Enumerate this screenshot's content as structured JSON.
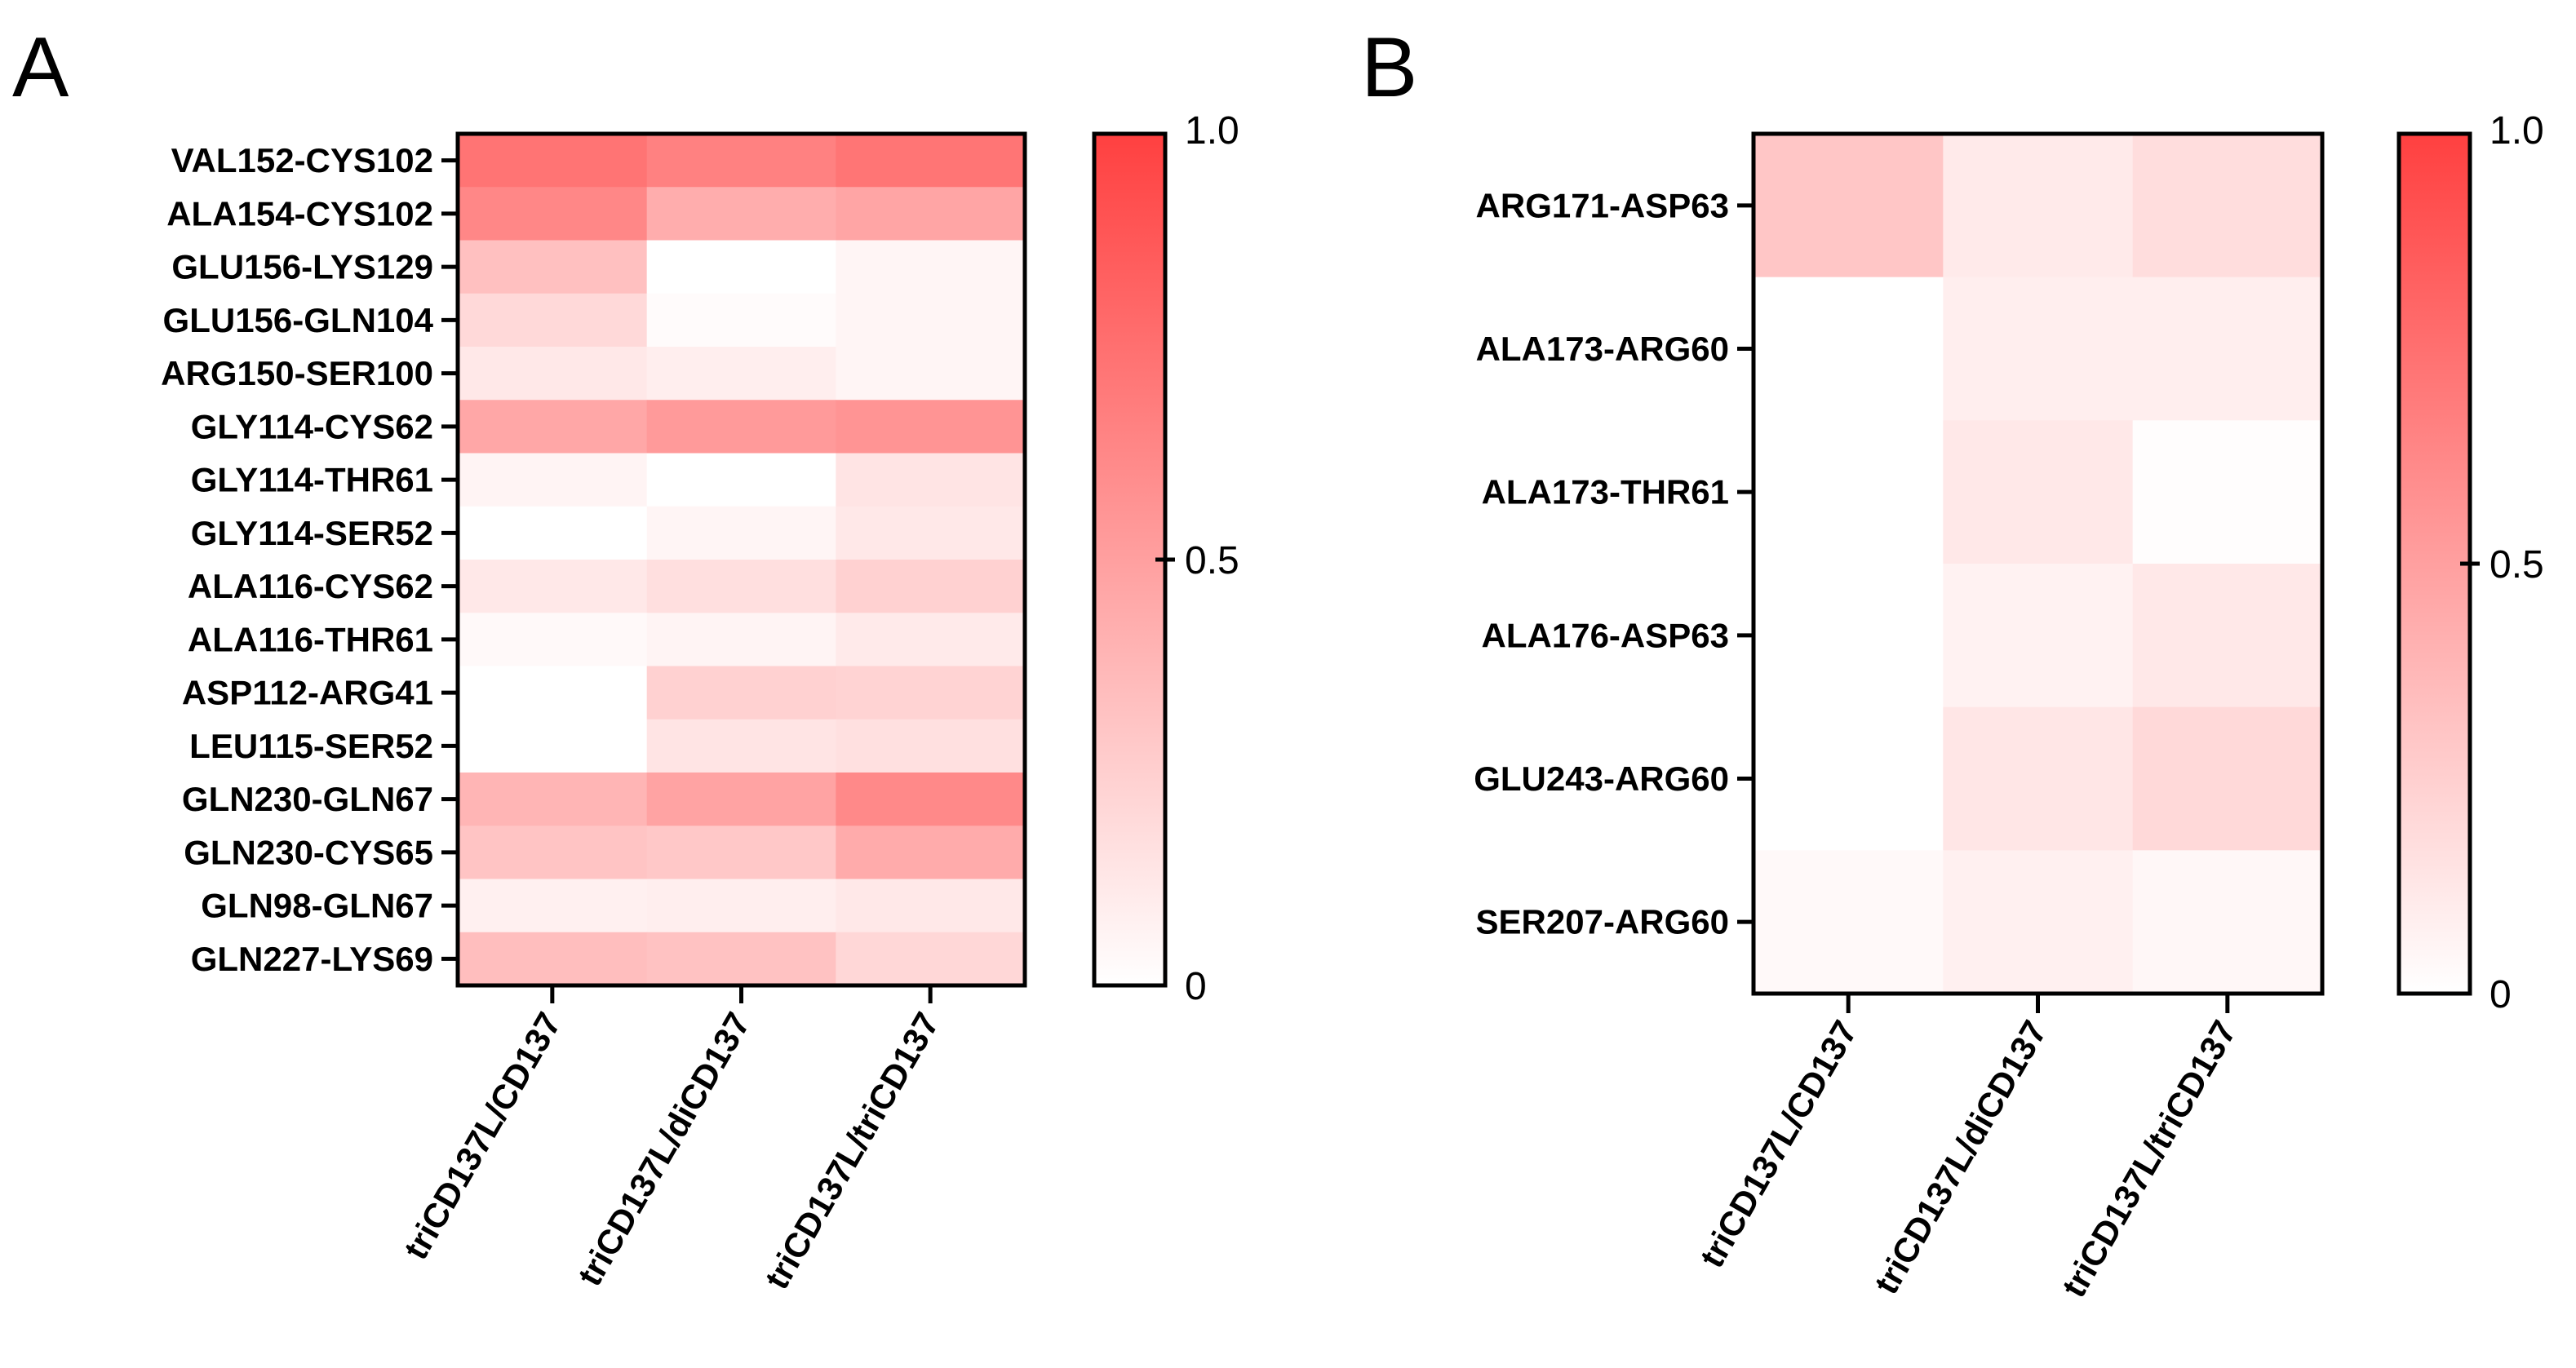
{
  "colors": {
    "low": "#ffffff",
    "high": "#ff4040",
    "frame": "#000000"
  },
  "chart_data": [
    {
      "type": "heatmap",
      "panel_label": "A",
      "columns": [
        "triCD137L/CD137",
        "triCD137L/diCD137",
        "triCD137L/triCD137"
      ],
      "rows": [
        "VAL152-CYS102",
        "ALA154-CYS102",
        "GLU156-LYS129",
        "GLU156-GLN104",
        "ARG150-SER100",
        "GLY114-CYS62",
        "GLY114-THR61",
        "GLY114-SER52",
        "ALA116-CYS62",
        "ALA116-THR61",
        "ASP112-ARG41",
        "LEU115-SER52",
        "GLN230-GLN67",
        "GLN230-CYS65",
        "GLN98-GLN67",
        "GLN227-LYS69"
      ],
      "values": [
        [
          0.73,
          0.66,
          0.72
        ],
        [
          0.63,
          0.43,
          0.47
        ],
        [
          0.33,
          0.0,
          0.05
        ],
        [
          0.2,
          0.02,
          0.05
        ],
        [
          0.12,
          0.09,
          0.05
        ],
        [
          0.46,
          0.53,
          0.56
        ],
        [
          0.06,
          0.0,
          0.14
        ],
        [
          0.0,
          0.05,
          0.12
        ],
        [
          0.12,
          0.17,
          0.24
        ],
        [
          0.03,
          0.06,
          0.11
        ],
        [
          0.0,
          0.24,
          0.23
        ],
        [
          0.0,
          0.14,
          0.16
        ],
        [
          0.39,
          0.48,
          0.62
        ],
        [
          0.31,
          0.29,
          0.44
        ],
        [
          0.08,
          0.09,
          0.12
        ],
        [
          0.34,
          0.32,
          0.21
        ]
      ],
      "colorbar": {
        "min": 0,
        "max": 1,
        "ticks": [
          "0",
          "0.5",
          "1.0"
        ]
      }
    },
    {
      "type": "heatmap",
      "panel_label": "B",
      "columns": [
        "triCD137L/CD137",
        "triCD137L/diCD137",
        "triCD137L/triCD137"
      ],
      "rows": [
        "ARG171-ASP63",
        "ALA173-ARG60",
        "ALA173-THR61",
        "ALA176-ASP63",
        "GLU243-ARG60",
        "SER207-ARG60"
      ],
      "values": [
        [
          0.3,
          0.11,
          0.18
        ],
        [
          0.0,
          0.09,
          0.09
        ],
        [
          0.0,
          0.12,
          0.01
        ],
        [
          0.0,
          0.07,
          0.12
        ],
        [
          0.0,
          0.13,
          0.2
        ],
        [
          0.03,
          0.08,
          0.04
        ]
      ],
      "colorbar": {
        "min": 0,
        "max": 1,
        "ticks": [
          "0",
          "0.5",
          "1.0"
        ]
      }
    }
  ]
}
